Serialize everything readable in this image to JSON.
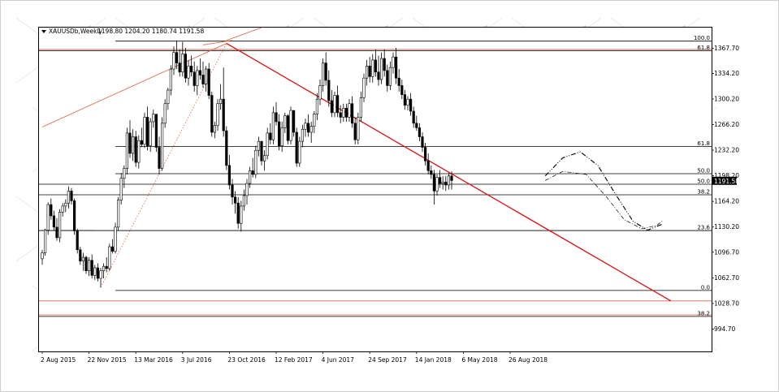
{
  "chart_header": {
    "symbol_timeframe": "XAUUSDb,Weekly",
    "ohlc": "1198.80 1204.20 1180.74 1191.58"
  },
  "watermark_text": "A-MARKETS",
  "current_price_label": "1191.58",
  "chart_data": {
    "type": "candlestick",
    "title": "",
    "xlabel": "",
    "ylabel": "",
    "ylim": [
      965,
      1395
    ],
    "x_tick_labels": [
      "2 Aug 2015",
      "22 Nov 2015",
      "13 Mar 2016",
      "3 Jul 2016",
      "23 Oct 2016",
      "12 Feb 2017",
      "4 Jun 2017",
      "24 Sep 2017",
      "14 Jan 2018",
      "6 May 2018",
      "26 Aug 2018"
    ],
    "y_tick_labels": [
      "1367.70",
      "1334.20",
      "1300.20",
      "1266.20",
      "1232.20",
      "1198.20",
      "1164.20",
      "1130.20",
      "1096.70",
      "1062.70",
      "1028.70",
      "994.70"
    ],
    "y_tick_values": [
      1367.7,
      1334.2,
      1300.2,
      1266.2,
      1232.2,
      1198.2,
      1164.2,
      1130.2,
      1096.7,
      1062.7,
      1028.7,
      994.7
    ],
    "current_price": 1191.58,
    "fibonacci_levels": [
      {
        "label": "100.0",
        "price": 1377.0,
        "from_week": 25,
        "color": "#000000"
      },
      {
        "label": "61.8",
        "price": 1364.5,
        "from_week": 0,
        "color": "#000000"
      },
      {
        "label": "61.8",
        "price": 1237.0,
        "from_week": 25,
        "color": "#000000"
      },
      {
        "label": "50.0",
        "price": 1201.0,
        "from_week": 25,
        "color": "#000000"
      },
      {
        "label": "50.0",
        "price": 1187.0,
        "from_week": 0,
        "color": "#000000"
      },
      {
        "label": "38.2",
        "price": 1173.0,
        "from_week": 0,
        "color": "#000000"
      },
      {
        "label": "23.6",
        "price": 1125.5,
        "from_week": 0,
        "color": "#000000"
      },
      {
        "label": "0.0",
        "price": 1046.0,
        "from_week": 25,
        "color": "#000000"
      },
      {
        "label": "38.2",
        "price": 1011.5,
        "from_week": 0,
        "color": "#000000"
      }
    ],
    "extra_lines": [
      {
        "price": 1366.0,
        "color": "#e06040"
      },
      {
        "price": 1032.0,
        "color": "#e06040"
      },
      {
        "price": 1013.5,
        "color": "#e06040"
      },
      {
        "price": 1125.5,
        "color": "#e06040",
        "to_week": 18
      }
    ],
    "trendlines": [
      {
        "from": [
          63,
          1374
        ],
        "to": [
          215,
          1032
        ],
        "color": "#e01010",
        "width": 1.3
      },
      {
        "from": [
          0,
          1263
        ],
        "to": [
          63,
          1374
        ],
        "color": "#e06040",
        "width": 0.8
      },
      {
        "from": [
          55,
          1372
        ],
        "to": [
          65,
          1378
        ],
        "color": "#e06040",
        "width": 0.8
      },
      {
        "from": [
          63,
          1378
        ],
        "to": [
          75,
          1395
        ],
        "color": "#e06040",
        "width": 0.8
      }
    ],
    "dotted_trend": {
      "from": [
        20,
        1050
      ],
      "to": [
        63,
        1374
      ],
      "color": "#e06040"
    },
    "projection_paths": [
      {
        "style": "dashdot",
        "points": [
          [
            172,
            1192
          ],
          [
            178,
            1204
          ],
          [
            186,
            1200
          ],
          [
            193,
            1170
          ],
          [
            199,
            1140
          ],
          [
            205,
            1128
          ],
          [
            210,
            1132
          ],
          [
            212,
            1138
          ]
        ]
      },
      {
        "style": "dashdotdot",
        "points": [
          [
            172,
            1198
          ],
          [
            178,
            1222
          ],
          [
            184,
            1230
          ],
          [
            190,
            1212
          ],
          [
            196,
            1174
          ],
          [
            202,
            1138
          ],
          [
            207,
            1126
          ],
          [
            212,
            1134
          ]
        ]
      }
    ],
    "candles_ohlc": [
      [
        1088,
        1100,
        1080,
        1096
      ],
      [
        1096,
        1128,
        1092,
        1126
      ],
      [
        1126,
        1163,
        1120,
        1160
      ],
      [
        1160,
        1168,
        1140,
        1145
      ],
      [
        1145,
        1152,
        1125,
        1130
      ],
      [
        1130,
        1142,
        1112,
        1116
      ],
      [
        1116,
        1154,
        1110,
        1150
      ],
      [
        1150,
        1162,
        1144,
        1158
      ],
      [
        1158,
        1167,
        1150,
        1162
      ],
      [
        1162,
        1184,
        1155,
        1178
      ],
      [
        1178,
        1182,
        1160,
        1165
      ],
      [
        1165,
        1168,
        1120,
        1125
      ],
      [
        1125,
        1128,
        1095,
        1100
      ],
      [
        1100,
        1104,
        1080,
        1085
      ],
      [
        1085,
        1096,
        1072,
        1090
      ],
      [
        1090,
        1092,
        1068,
        1072
      ],
      [
        1072,
        1090,
        1065,
        1086
      ],
      [
        1086,
        1094,
        1062,
        1066
      ],
      [
        1066,
        1080,
        1060,
        1076
      ],
      [
        1076,
        1082,
        1058,
        1062
      ],
      [
        1062,
        1076,
        1050,
        1072
      ],
      [
        1072,
        1082,
        1062,
        1078
      ],
      [
        1078,
        1090,
        1070,
        1075
      ],
      [
        1075,
        1108,
        1072,
        1104
      ],
      [
        1104,
        1114,
        1095,
        1098
      ],
      [
        1098,
        1136,
        1095,
        1130
      ],
      [
        1130,
        1170,
        1126,
        1166
      ],
      [
        1166,
        1202,
        1160,
        1195
      ],
      [
        1195,
        1212,
        1182,
        1208
      ],
      [
        1208,
        1262,
        1200,
        1255
      ],
      [
        1255,
        1272,
        1222,
        1228
      ],
      [
        1228,
        1260,
        1218,
        1250
      ],
      [
        1250,
        1258,
        1210,
        1216
      ],
      [
        1216,
        1252,
        1208,
        1245
      ],
      [
        1245,
        1262,
        1236,
        1240
      ],
      [
        1240,
        1282,
        1235,
        1276
      ],
      [
        1276,
        1290,
        1232,
        1238
      ],
      [
        1238,
        1275,
        1230,
        1270
      ],
      [
        1270,
        1286,
        1262,
        1280
      ],
      [
        1280,
        1260,
        1230,
        1236
      ],
      [
        1236,
        1250,
        1200,
        1208
      ],
      [
        1208,
        1276,
        1205,
        1268
      ],
      [
        1268,
        1300,
        1262,
        1294
      ],
      [
        1294,
        1315,
        1286,
        1312
      ],
      [
        1312,
        1345,
        1305,
        1340
      ],
      [
        1340,
        1370,
        1332,
        1362
      ],
      [
        1362,
        1378,
        1340,
        1348
      ],
      [
        1348,
        1366,
        1330,
        1336
      ],
      [
        1336,
        1376,
        1330,
        1360
      ],
      [
        1360,
        1368,
        1322,
        1328
      ],
      [
        1328,
        1352,
        1318,
        1344
      ],
      [
        1344,
        1358,
        1330,
        1336
      ],
      [
        1336,
        1350,
        1310,
        1318
      ],
      [
        1318,
        1344,
        1305,
        1338
      ],
      [
        1338,
        1354,
        1326,
        1332
      ],
      [
        1332,
        1350,
        1315,
        1320
      ],
      [
        1320,
        1344,
        1310,
        1340
      ],
      [
        1340,
        1348,
        1300,
        1305
      ],
      [
        1305,
        1310,
        1250,
        1256
      ],
      [
        1256,
        1270,
        1248,
        1265
      ],
      [
        1265,
        1300,
        1258,
        1294
      ],
      [
        1294,
        1320,
        1286,
        1300
      ],
      [
        1300,
        1342,
        1250,
        1258
      ],
      [
        1258,
        1264,
        1206,
        1212
      ],
      [
        1212,
        1226,
        1180,
        1186
      ],
      [
        1186,
        1194,
        1160,
        1170
      ],
      [
        1170,
        1178,
        1148,
        1162
      ],
      [
        1162,
        1170,
        1128,
        1135
      ],
      [
        1135,
        1165,
        1124,
        1158
      ],
      [
        1158,
        1180,
        1152,
        1172
      ],
      [
        1172,
        1194,
        1160,
        1188
      ],
      [
        1188,
        1210,
        1182,
        1205
      ],
      [
        1205,
        1222,
        1196,
        1200
      ],
      [
        1200,
        1238,
        1195,
        1232
      ],
      [
        1232,
        1250,
        1224,
        1244
      ],
      [
        1244,
        1236,
        1212,
        1218
      ],
      [
        1218,
        1232,
        1205,
        1225
      ],
      [
        1225,
        1262,
        1220,
        1255
      ],
      [
        1255,
        1268,
        1240,
        1246
      ],
      [
        1246,
        1290,
        1240,
        1282
      ],
      [
        1282,
        1296,
        1265,
        1270
      ],
      [
        1270,
        1280,
        1232,
        1238
      ],
      [
        1238,
        1270,
        1230,
        1262
      ],
      [
        1262,
        1282,
        1255,
        1278
      ],
      [
        1278,
        1280,
        1240,
        1245
      ],
      [
        1245,
        1290,
        1240,
        1285
      ],
      [
        1285,
        1272,
        1250,
        1256
      ],
      [
        1256,
        1262,
        1210,
        1215
      ],
      [
        1215,
        1250,
        1210,
        1244
      ],
      [
        1244,
        1266,
        1236,
        1260
      ],
      [
        1260,
        1274,
        1250,
        1268
      ],
      [
        1268,
        1280,
        1250,
        1256
      ],
      [
        1256,
        1270,
        1242,
        1264
      ],
      [
        1264,
        1284,
        1255,
        1280
      ],
      [
        1280,
        1308,
        1272,
        1300
      ],
      [
        1300,
        1326,
        1292,
        1318
      ],
      [
        1318,
        1354,
        1310,
        1348
      ],
      [
        1348,
        1362,
        1318,
        1325
      ],
      [
        1325,
        1338,
        1290,
        1298
      ],
      [
        1298,
        1312,
        1276,
        1282
      ],
      [
        1282,
        1310,
        1276,
        1305
      ],
      [
        1305,
        1318,
        1276,
        1282
      ],
      [
        1282,
        1292,
        1268,
        1276
      ],
      [
        1276,
        1294,
        1270,
        1288
      ],
      [
        1288,
        1294,
        1270,
        1276
      ],
      [
        1276,
        1300,
        1270,
        1294
      ],
      [
        1294,
        1304,
        1262,
        1268
      ],
      [
        1268,
        1276,
        1240,
        1246
      ],
      [
        1246,
        1282,
        1240,
        1276
      ],
      [
        1276,
        1310,
        1270,
        1302
      ],
      [
        1302,
        1334,
        1296,
        1328
      ],
      [
        1328,
        1352,
        1318,
        1344
      ],
      [
        1344,
        1356,
        1322,
        1330
      ],
      [
        1330,
        1360,
        1322,
        1352
      ],
      [
        1352,
        1366,
        1330,
        1336
      ],
      [
        1336,
        1358,
        1318,
        1326
      ],
      [
        1326,
        1362,
        1320,
        1354
      ],
      [
        1354,
        1366,
        1330,
        1338
      ],
      [
        1338,
        1346,
        1310,
        1318
      ],
      [
        1318,
        1350,
        1312,
        1342
      ],
      [
        1342,
        1362,
        1334,
        1356
      ],
      [
        1356,
        1368,
        1320,
        1328
      ],
      [
        1328,
        1340,
        1310,
        1318
      ],
      [
        1318,
        1326,
        1300,
        1306
      ],
      [
        1306,
        1312,
        1286,
        1292
      ],
      [
        1292,
        1304,
        1285,
        1300
      ],
      [
        1300,
        1308,
        1278,
        1284
      ],
      [
        1284,
        1290,
        1262,
        1268
      ],
      [
        1268,
        1278,
        1258,
        1262
      ],
      [
        1262,
        1268,
        1244,
        1250
      ],
      [
        1250,
        1256,
        1230,
        1236
      ],
      [
        1236,
        1242,
        1212,
        1218
      ],
      [
        1218,
        1228,
        1200,
        1205
      ],
      [
        1205,
        1212,
        1194,
        1200
      ],
      [
        1200,
        1206,
        1160,
        1178
      ],
      [
        1178,
        1200,
        1172,
        1196
      ],
      [
        1196,
        1206,
        1182,
        1188
      ],
      [
        1188,
        1198,
        1180,
        1190
      ],
      [
        1190,
        1198,
        1178,
        1186
      ],
      [
        1186,
        1202,
        1180,
        1198
      ],
      [
        1198,
        1204,
        1180,
        1192
      ]
    ]
  }
}
